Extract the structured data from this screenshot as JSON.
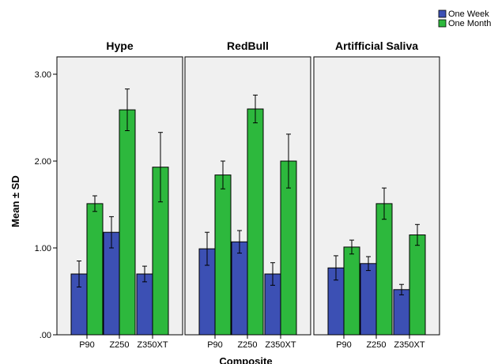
{
  "chart_data": {
    "type": "bar",
    "xlabel": "Composite",
    "ylabel": "Mean ± SD",
    "ylim": [
      0,
      3.2
    ],
    "yticks": [
      0,
      1,
      2,
      3
    ],
    "ytick_labels": [
      ".00",
      "1.00",
      "2.00",
      "3.00"
    ],
    "categories": [
      "P90",
      "Z250",
      "Z350XT"
    ],
    "legend": {
      "position": "top-right",
      "entries": [
        {
          "name": "One Week",
          "color": "#3c50b4"
        },
        {
          "name": "One Month",
          "color": "#2db83d"
        }
      ]
    },
    "panels": [
      {
        "title": "Hype",
        "series": [
          {
            "name": "One Week",
            "values": [
              0.7,
              1.18,
              0.7
            ],
            "sd": [
              0.15,
              0.18,
              0.09
            ]
          },
          {
            "name": "One Month",
            "values": [
              1.51,
              2.59,
              1.93
            ],
            "sd": [
              0.09,
              0.24,
              0.4
            ]
          }
        ]
      },
      {
        "title": "RedBull",
        "series": [
          {
            "name": "One Week",
            "values": [
              0.99,
              1.07,
              0.7
            ],
            "sd": [
              0.19,
              0.13,
              0.13
            ]
          },
          {
            "name": "One Month",
            "values": [
              1.84,
              2.6,
              2.0
            ],
            "sd": [
              0.16,
              0.16,
              0.31
            ]
          }
        ]
      },
      {
        "title": "Artifficial Saliva",
        "series": [
          {
            "name": "One Week",
            "values": [
              0.77,
              0.82,
              0.52
            ],
            "sd": [
              0.14,
              0.08,
              0.06
            ]
          },
          {
            "name": "One Month",
            "values": [
              1.01,
              1.51,
              1.15
            ],
            "sd": [
              0.08,
              0.18,
              0.12
            ]
          }
        ]
      }
    ]
  }
}
